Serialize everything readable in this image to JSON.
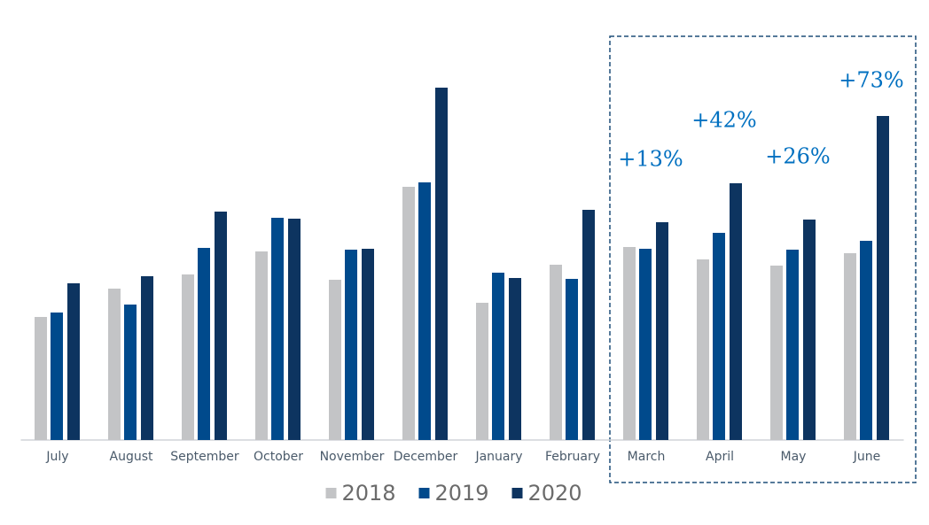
{
  "chart_data": {
    "type": "bar",
    "categories": [
      "July",
      "August",
      "September",
      "October",
      "November",
      "December",
      "January",
      "February",
      "March",
      "April",
      "May",
      "June"
    ],
    "series": [
      {
        "name": "2018",
        "color": "#c3c4c6",
        "values": [
          139,
          171,
          187,
          213,
          181,
          286,
          155,
          198,
          218,
          204,
          197,
          211
        ]
      },
      {
        "name": "2019",
        "color": "#004a8c",
        "values": [
          144,
          153,
          217,
          251,
          215,
          291,
          189,
          182,
          216,
          234,
          215,
          225
        ]
      },
      {
        "name": "2020",
        "color": "#0d3460",
        "values": [
          177,
          185,
          258,
          250,
          216,
          398,
          183,
          260,
          246,
          290,
          249,
          366
        ]
      }
    ],
    "ylim": [
      0,
      420
    ],
    "highlight": {
      "categories": [
        "March",
        "April",
        "May",
        "June"
      ],
      "labels": [
        "+13%",
        "+42%",
        "+26%",
        "+73%"
      ]
    },
    "legend": "bottom"
  }
}
